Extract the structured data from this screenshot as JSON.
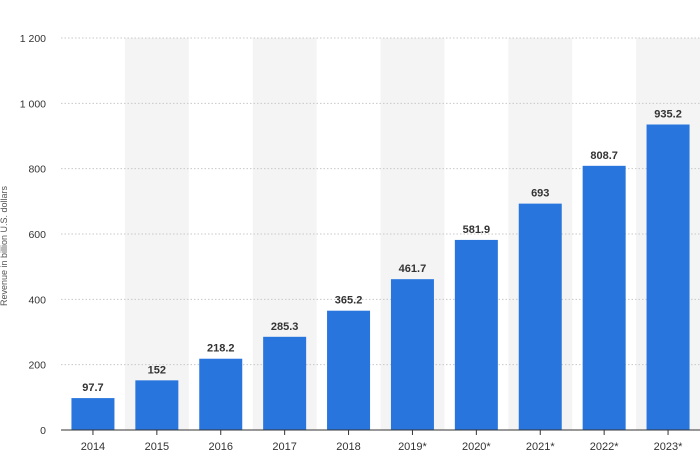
{
  "chart_data": {
    "type": "bar",
    "categories": [
      "2014",
      "2015",
      "2016",
      "2017",
      "2018",
      "2019*",
      "2020*",
      "2021*",
      "2022*",
      "2023*"
    ],
    "values": [
      97.7,
      152,
      218.2,
      285.3,
      365.2,
      461.7,
      581.9,
      693,
      808.7,
      935.2
    ],
    "value_labels": [
      "97.7",
      "152",
      "218.2",
      "285.3",
      "365.2",
      "461.7",
      "581.9",
      "693",
      "808.7",
      "935.2"
    ],
    "title": "",
    "xlabel": "",
    "ylabel": "Revenue in billion U.S. dollars",
    "ylim": [
      0,
      1200
    ],
    "yticks": [
      0,
      200,
      400,
      600,
      800,
      1000,
      1200
    ],
    "ytick_labels": [
      "0",
      "200",
      "400",
      "600",
      "800",
      "1 000",
      "1 200"
    ],
    "grid": true,
    "legend": "none",
    "colors": {
      "bar": "#2876dd",
      "alt_band": "#f4f4f4",
      "grid": "#c8c8c8",
      "axis": "#333333"
    }
  }
}
